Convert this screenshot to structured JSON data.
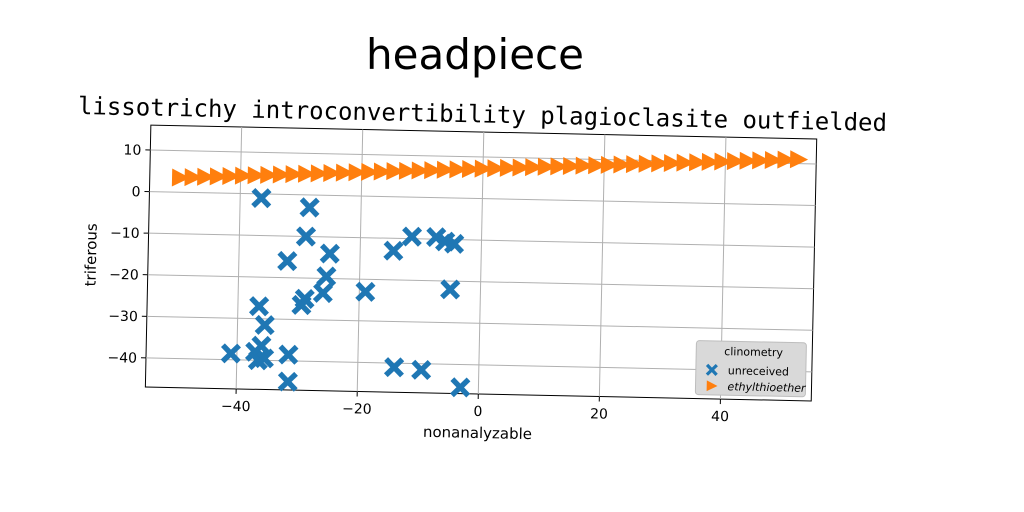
{
  "chart_data": {
    "type": "scatter",
    "title": "headpiece",
    "subtitle": "lissotrichy introconvertibility plagioclasite outfielded",
    "xlabel": "nonanalyzable",
    "ylabel": "triferous",
    "xlim": [
      -55,
      55
    ],
    "ylim": [
      -47,
      16
    ],
    "xticks": [
      -40,
      -20,
      0,
      20,
      40
    ],
    "yticks": [
      10,
      0,
      -10,
      -20,
      -30,
      -40
    ],
    "xtick_labels": [
      "−40",
      "−20",
      "0",
      "20",
      "40"
    ],
    "ytick_labels": [
      "10",
      "0",
      "−10",
      "−20",
      "−30",
      "−40"
    ],
    "grid": true,
    "legend": {
      "title": "clinometry",
      "position": "lower-right"
    },
    "series": [
      {
        "name": "unreceived",
        "marker": "X",
        "color": "#1f77b4",
        "points": [
          [
            -36.5,
            -1
          ],
          [
            -28.5,
            -3
          ],
          [
            -29,
            -10
          ],
          [
            -32,
            -16
          ],
          [
            -25,
            -14
          ],
          [
            -25.5,
            -19.5
          ],
          [
            -26,
            -23.5
          ],
          [
            -29,
            -25
          ],
          [
            -29.5,
            -26.5
          ],
          [
            -19,
            -23
          ],
          [
            -36.5,
            -27
          ],
          [
            -35.5,
            -31.5
          ],
          [
            -41,
            -38.5
          ],
          [
            -37,
            -38
          ],
          [
            -36.5,
            -40
          ],
          [
            -35.5,
            -39.5
          ],
          [
            -31.5,
            -38.5
          ],
          [
            -31.5,
            -45
          ],
          [
            -14.5,
            -13
          ],
          [
            -11.5,
            -9.5
          ],
          [
            -7.5,
            -9.5
          ],
          [
            -6,
            -10.5
          ],
          [
            -4.5,
            -11
          ],
          [
            -5,
            -22
          ],
          [
            -14,
            -41
          ],
          [
            -9.5,
            -41.5
          ],
          [
            -3,
            -45.5
          ],
          [
            -36,
            -36.5
          ]
        ]
      },
      {
        "name": "ethylthioether",
        "marker": ">",
        "color": "#ff7f0e",
        "line_from": [
          -50,
          3.5
        ],
        "line_to": [
          52,
          11
        ],
        "count": 50
      }
    ]
  }
}
